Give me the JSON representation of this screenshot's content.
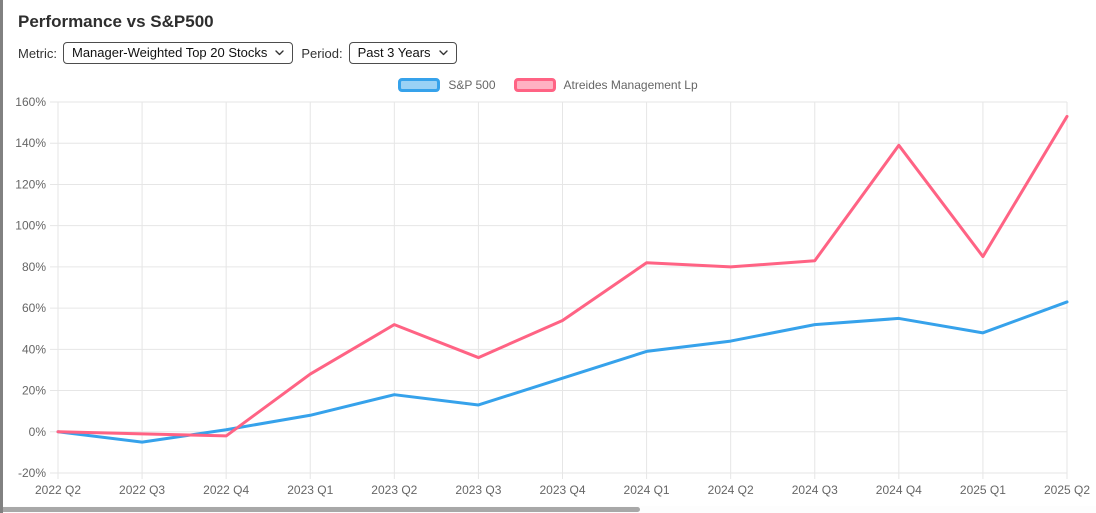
{
  "page": {
    "title": "Performance vs S&P500"
  },
  "controls": {
    "metric_label": "Metric:",
    "metric_value": "Manager-Weighted Top 20 Stocks",
    "period_label": "Period:",
    "period_value": "Past 3 Years"
  },
  "chart_data": {
    "type": "line",
    "categories": [
      "2022 Q2",
      "2022 Q3",
      "2022 Q4",
      "2023 Q1",
      "2023 Q2",
      "2023 Q3",
      "2023 Q4",
      "2024 Q1",
      "2024 Q2",
      "2024 Q3",
      "2024 Q4",
      "2025 Q1",
      "2025 Q2"
    ],
    "series": [
      {
        "name": "S&P 500",
        "color": "#36a2eb",
        "fill": "#9ad1f5",
        "values": [
          0,
          -5,
          1,
          8,
          18,
          13,
          26,
          39,
          44,
          52,
          55,
          48,
          63
        ]
      },
      {
        "name": "Atreides Management Lp",
        "color": "#ff6384",
        "fill": "#ffb1c2",
        "values": [
          0,
          -1,
          -2,
          28,
          52,
          36,
          54,
          82,
          80,
          83,
          139,
          85,
          153
        ]
      }
    ],
    "ylim": [
      -20,
      160
    ],
    "ytick_step": 20,
    "ytick_suffix": "%",
    "grid": true,
    "gridline_color": "#e6e6e6",
    "legend_position": "top"
  }
}
